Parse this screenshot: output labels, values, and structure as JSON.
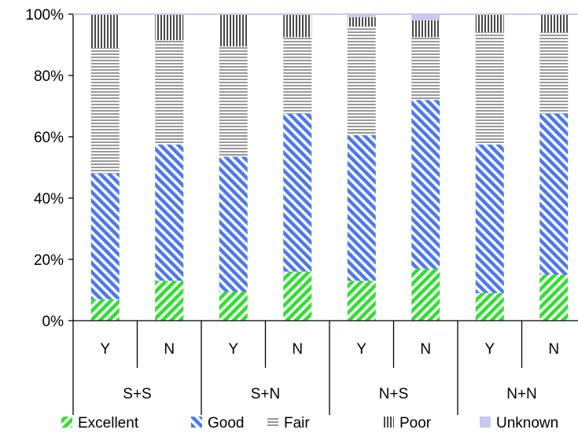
{
  "chart_data": {
    "type": "bar",
    "stacked": true,
    "percent_stacked": true,
    "title": "",
    "xlabel": "",
    "ylabel": "",
    "ylim": [
      0,
      100
    ],
    "y_ticks": [
      "0%",
      "20%",
      "40%",
      "60%",
      "80%",
      "100%"
    ],
    "grid": false,
    "legend_position": "bottom",
    "categories": [
      "Y",
      "N",
      "Y",
      "N",
      "Y",
      "N",
      "Y",
      "N"
    ],
    "groups": [
      {
        "label": "S+S",
        "members": [
          "Y",
          "N"
        ]
      },
      {
        "label": "S+N",
        "members": [
          "Y",
          "N"
        ]
      },
      {
        "label": "N+S",
        "members": [
          "Y",
          "N"
        ]
      },
      {
        "label": "N+N",
        "members": [
          "Y",
          "N"
        ]
      }
    ],
    "series": [
      {
        "name": "Excellent",
        "color": "#33dd33",
        "pattern": "diagonal-up",
        "values": [
          7,
          13,
          9.5,
          16,
          13,
          17,
          9,
          15
        ]
      },
      {
        "name": "Good",
        "color": "#4f78f0",
        "pattern": "diagonal-down",
        "values": [
          41,
          44.5,
          44,
          51.5,
          47.5,
          55,
          48.5,
          52.5
        ]
      },
      {
        "name": "Fair",
        "color": "#999999",
        "pattern": "horizontal-lines",
        "values": [
          41,
          34,
          36,
          25,
          35.5,
          20.5,
          36.5,
          26.5
        ]
      },
      {
        "name": "Poor",
        "color": "#555555",
        "pattern": "vertical-lines",
        "values": [
          11,
          8.5,
          10.5,
          7.5,
          3,
          5.5,
          6,
          6
        ]
      },
      {
        "name": "Unknown",
        "color": "#c8c8f0",
        "pattern": "solid",
        "values": [
          0,
          0,
          0,
          0,
          1,
          2,
          0,
          0
        ]
      }
    ]
  }
}
